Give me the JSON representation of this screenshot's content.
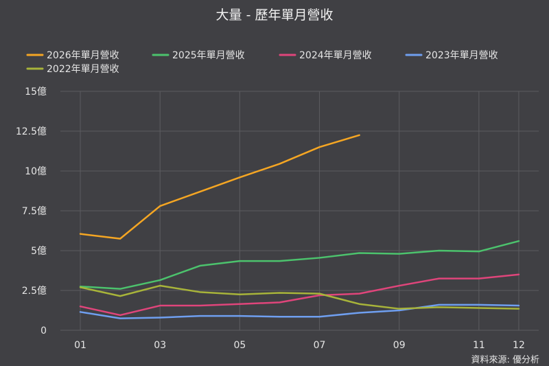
{
  "chart_data": {
    "type": "line",
    "title": "大量 - 歷年單月營收",
    "source": "資料來源: 優分析",
    "y_ticks": [
      "0",
      "2.5億",
      "5億",
      "7.5億",
      "10億",
      "12.5億",
      "15億"
    ],
    "y_tick_values": [
      0,
      2.5,
      5,
      7.5,
      10,
      12.5,
      15
    ],
    "ylim": [
      0,
      15
    ],
    "x": [
      1,
      2,
      3,
      4,
      5,
      6,
      7,
      8,
      9,
      10,
      11,
      12
    ],
    "x_ticks": [
      {
        "label": "01",
        "x": 1
      },
      {
        "label": "03",
        "x": 3
      },
      {
        "label": "05",
        "x": 5
      },
      {
        "label": "07",
        "x": 7
      },
      {
        "label": "09",
        "x": 9
      },
      {
        "label": "11",
        "x": 11
      },
      {
        "label": "12",
        "x": 12
      }
    ],
    "grid": true,
    "legend_position": "top",
    "series": [
      {
        "name": "2026年單月營收",
        "color": "#f5a623",
        "values": [
          6.05,
          5.75,
          7.8,
          8.7,
          9.6,
          10.45,
          11.5,
          12.25,
          null,
          null,
          null,
          null
        ]
      },
      {
        "name": "2025年單月營收",
        "color": "#4cc36d",
        "values": [
          2.75,
          2.6,
          3.15,
          4.05,
          4.35,
          4.35,
          4.55,
          4.85,
          4.8,
          5.0,
          4.95,
          5.6
        ]
      },
      {
        "name": "2024年單月營收",
        "color": "#e0457b",
        "values": [
          1.5,
          0.95,
          1.55,
          1.55,
          1.65,
          1.75,
          2.2,
          2.3,
          2.8,
          3.25,
          3.25,
          3.5
        ]
      },
      {
        "name": "2023年單月營收",
        "color": "#6f9ff0",
        "values": [
          1.15,
          0.75,
          0.8,
          0.9,
          0.9,
          0.85,
          0.85,
          1.1,
          1.25,
          1.6,
          1.6,
          1.55
        ]
      },
      {
        "name": "2022年單月營收",
        "color": "#a8b43a",
        "values": [
          2.7,
          2.15,
          2.8,
          2.4,
          2.25,
          2.35,
          2.3,
          1.65,
          1.35,
          1.45,
          1.4,
          1.35
        ]
      }
    ]
  }
}
